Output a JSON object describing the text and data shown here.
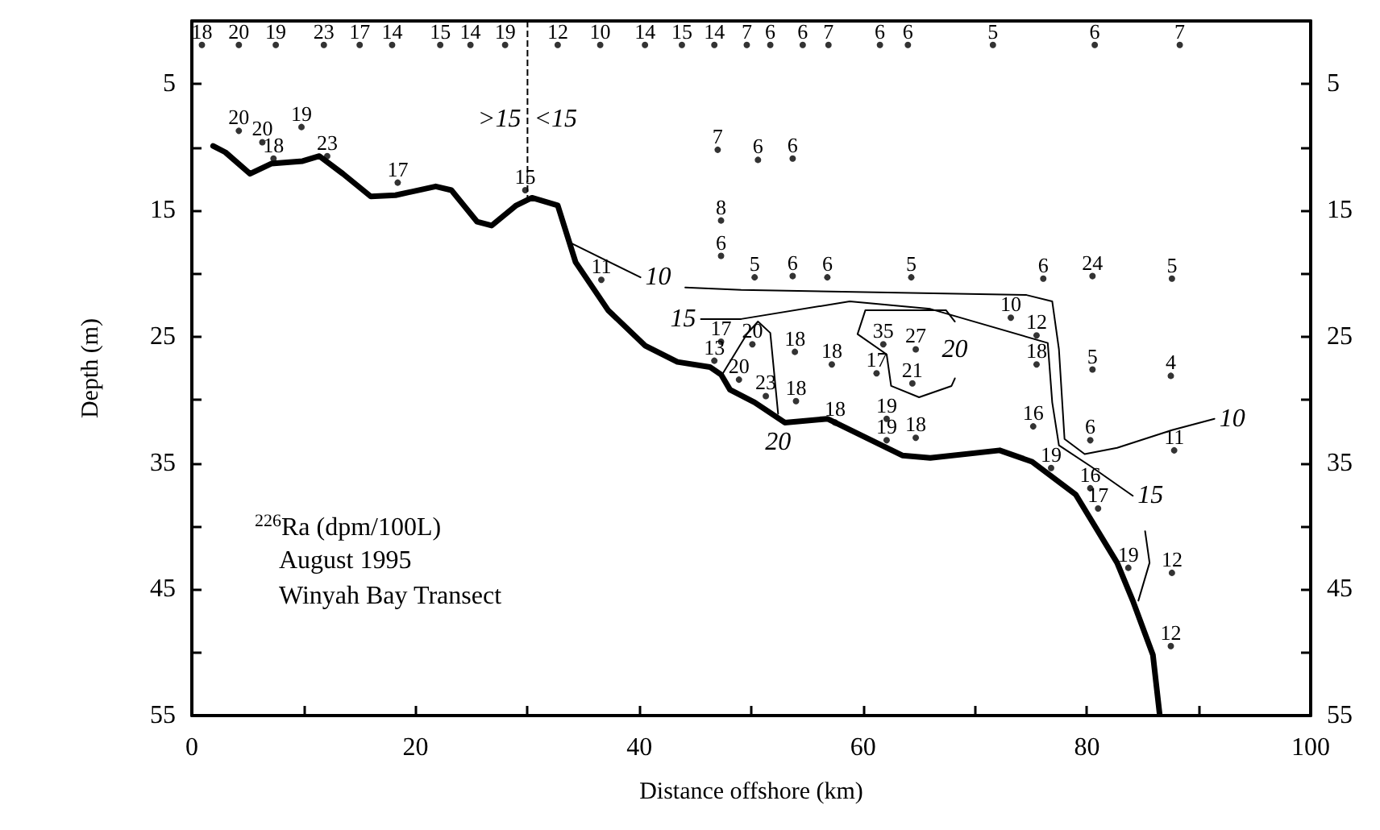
{
  "chart_data": {
    "type": "line",
    "xlabel": "Distance offshore (km)",
    "ylabel": "Depth (m)",
    "xlim": [
      0,
      100
    ],
    "xticks": [
      0,
      {
        "value": 10,
        "label": null
      },
      20,
      {
        "value": 30,
        "label": null
      },
      40,
      {
        "value": 50,
        "label": null
      },
      60,
      {
        "value": 70,
        "label": null
      },
      80,
      {
        "value": 90,
        "label": null
      },
      100
    ],
    "ylim": [
      55,
      0
    ],
    "yticks": [
      5,
      {
        "value": 10,
        "label": null
      },
      15,
      {
        "value": 20,
        "label": null
      },
      25,
      {
        "value": 30,
        "label": null
      },
      35,
      {
        "value": 40,
        "label": null
      },
      45,
      {
        "value": 50,
        "label": null
      },
      55
    ],
    "y2lim": [
      55,
      0
    ],
    "y2ticks": [
      5,
      {
        "value": 10,
        "label": null
      },
      15,
      {
        "value": 20,
        "label": null
      },
      25,
      {
        "value": 30,
        "label": null
      },
      35,
      {
        "value": 40,
        "label": null
      },
      45,
      {
        "value": 50,
        "label": null
      },
      55
    ],
    "grid": false,
    "marker": "none",
    "series": [
      {
        "color": "#000000",
        "x": [
          1.9,
          3.0,
          5.2,
          7.1,
          9.9,
          11.4,
          13.5,
          16.0,
          18.2,
          21.8,
          23.2,
          25.5,
          26.8,
          29.0,
          30.4,
          32.7,
          34.3,
          37.2,
          40.5,
          43.4,
          46.3,
          47.3,
          48.1,
          50.3,
          53.0,
          56.8,
          63.5,
          66.0,
          72.2,
          75.1,
          79.0,
          82.7,
          84.1,
          85.9,
          86.5
        ],
        "values": [
          9.9,
          10.4,
          12.1,
          11.3,
          11.1,
          10.7,
          12.1,
          13.9,
          13.8,
          13.1,
          13.4,
          15.9,
          16.2,
          14.6,
          14.0,
          14.6,
          19.1,
          22.9,
          25.7,
          27.0,
          27.4,
          28.0,
          29.2,
          30.2,
          31.8,
          31.5,
          34.4,
          34.6,
          34.0,
          34.9,
          37.5,
          42.9,
          45.9,
          50.2,
          54.9
        ]
      },
      {
        "color": "#000000",
        "x": [
          33.7,
          40.1
        ],
        "values": [
          17.5,
          20.3
        ]
      },
      {
        "color": "#000000",
        "x": [
          44.1,
          49.1,
          74.6,
          76.9,
          77.5,
          78.0,
          79.8,
          82.7,
          87.6,
          91.4
        ],
        "values": [
          21.1,
          21.3,
          21.7,
          22.2,
          26.0,
          33.1,
          34.3,
          33.8,
          32.4,
          31.5
        ]
      },
      {
        "color": "#000000",
        "x": [
          45.5,
          49.1,
          58.8,
          66.0,
          76.5,
          76.9,
          77.5,
          80.4,
          84.1
        ],
        "values": [
          23.6,
          23.6,
          22.2,
          22.8,
          25.5,
          30.2,
          33.6,
          35.3,
          37.6
        ]
      },
      {
        "color": "#000000",
        "x": [
          85.2,
          85.6,
          84.6
        ],
        "values": [
          40.4,
          42.9,
          45.9
        ]
      },
      {
        "color": "#000000",
        "x": [
          68.2,
          67.4,
          60.2,
          59.5,
          62.1,
          62.5,
          65.0,
          67.9,
          68.2
        ],
        "values": [
          23.8,
          22.9,
          22.9,
          24.8,
          26.4,
          28.9,
          29.8,
          28.9,
          28.3
        ]
      },
      {
        "color": "#000000",
        "x": [
          47.4,
          49.6,
          50.6,
          51.7,
          52.4
        ],
        "values": [
          28.0,
          24.8,
          23.8,
          24.7,
          31.1
        ]
      },
      {
        "type": "scatter",
        "color": "#000000",
        "marker": "circle",
        "x": [
          0.9,
          4.2,
          7.5,
          11.8,
          15.0,
          17.9,
          22.2,
          24.9,
          28.0,
          32.7,
          36.5,
          40.5,
          43.8,
          46.7,
          49.6,
          51.7,
          54.6,
          56.9,
          61.5,
          64.0,
          71.6,
          80.7,
          88.3,
          4.2,
          6.3,
          9.8,
          7.3,
          12.1,
          18.4,
          29.8,
          47.0,
          50.6,
          53.7,
          47.3,
          47.3,
          36.6,
          50.3,
          53.7,
          56.8,
          64.3,
          76.1,
          80.5,
          87.6,
          73.2,
          75.5,
          75.5,
          80.5,
          87.5,
          46.7,
          47.3,
          50.1,
          53.9,
          57.2,
          61.8,
          64.7,
          61.2,
          64.4,
          48.9,
          51.3,
          54.0,
          57.5,
          62.1,
          62.1,
          64.7,
          75.2,
          80.3,
          87.8,
          76.8,
          80.3,
          81.0,
          83.7,
          87.6,
          87.5
        ],
        "values": [
          1.9,
          1.9,
          1.9,
          1.9,
          1.9,
          1.9,
          1.9,
          1.9,
          1.9,
          1.9,
          1.9,
          1.9,
          1.9,
          1.9,
          1.9,
          1.9,
          1.9,
          1.9,
          1.9,
          1.9,
          1.9,
          1.9,
          1.9,
          8.7,
          9.6,
          8.4,
          10.9,
          10.7,
          12.8,
          13.4,
          10.2,
          11.0,
          10.9,
          15.8,
          18.6,
          20.5,
          20.3,
          20.2,
          20.3,
          20.3,
          20.4,
          20.2,
          20.4,
          23.5,
          24.9,
          27.2,
          27.6,
          28.1,
          26.9,
          25.4,
          25.6,
          26.2,
          27.2,
          25.6,
          26.0,
          27.9,
          28.7,
          28.4,
          29.7,
          30.1,
          31.8,
          31.5,
          33.2,
          33.0,
          32.1,
          33.2,
          34.0,
          35.4,
          37.0,
          38.6,
          43.3,
          43.7,
          49.5
        ]
      }
    ],
    "ref_lines": [
      {
        "axis": "x",
        "value": 30,
        "line_style": "dashed",
        "color": "#000000"
      }
    ],
    "annotations": [
      {
        "text": "18",
        "x": 0.9,
        "y": 1.9
      },
      {
        "text": "20",
        "x": 4.2,
        "y": 1.9
      },
      {
        "text": "19",
        "x": 7.5,
        "y": 1.9
      },
      {
        "text": "23",
        "x": 11.8,
        "y": 1.9
      },
      {
        "text": "17",
        "x": 15.0,
        "y": 1.9
      },
      {
        "text": "14",
        "x": 17.9,
        "y": 1.9
      },
      {
        "text": "15",
        "x": 22.2,
        "y": 1.9
      },
      {
        "text": "14",
        "x": 24.9,
        "y": 1.9
      },
      {
        "text": "19",
        "x": 28.0,
        "y": 1.9
      },
      {
        "text": "12",
        "x": 32.7,
        "y": 1.9
      },
      {
        "text": "10",
        "x": 36.5,
        "y": 1.9
      },
      {
        "text": "14",
        "x": 40.5,
        "y": 1.9
      },
      {
        "text": "15",
        "x": 43.8,
        "y": 1.9
      },
      {
        "text": "14",
        "x": 46.7,
        "y": 1.9
      },
      {
        "text": "7",
        "x": 49.6,
        "y": 1.9
      },
      {
        "text": "6",
        "x": 51.7,
        "y": 1.9
      },
      {
        "text": "6",
        "x": 54.6,
        "y": 1.9
      },
      {
        "text": "7",
        "x": 56.9,
        "y": 1.9
      },
      {
        "text": "6",
        "x": 61.5,
        "y": 1.9
      },
      {
        "text": "6",
        "x": 64.0,
        "y": 1.9
      },
      {
        "text": "5",
        "x": 71.6,
        "y": 1.9
      },
      {
        "text": "6",
        "x": 80.7,
        "y": 1.9
      },
      {
        "text": "7",
        "x": 88.3,
        "y": 1.9
      },
      {
        "text": "20",
        "x": 4.2,
        "y": 8.7
      },
      {
        "text": "20",
        "x": 6.3,
        "y": 9.6
      },
      {
        "text": "19",
        "x": 9.8,
        "y": 8.4
      },
      {
        "text": "18",
        "x": 7.3,
        "y": 10.9
      },
      {
        "text": "23",
        "x": 12.1,
        "y": 10.7
      },
      {
        "text": "17",
        "x": 18.4,
        "y": 12.8
      },
      {
        "text": "15",
        "x": 29.8,
        "y": 13.4
      },
      {
        "text": "7",
        "x": 47.0,
        "y": 10.2
      },
      {
        "text": "6",
        "x": 50.6,
        "y": 11.0
      },
      {
        "text": "6",
        "x": 53.7,
        "y": 10.9
      },
      {
        "text": "8",
        "x": 47.3,
        "y": 15.8
      },
      {
        "text": "6",
        "x": 47.3,
        "y": 18.6
      },
      {
        "text": "11",
        "x": 36.6,
        "y": 20.5
      },
      {
        "text": "5",
        "x": 50.3,
        "y": 20.3
      },
      {
        "text": "6",
        "x": 53.7,
        "y": 20.2
      },
      {
        "text": "6",
        "x": 56.8,
        "y": 20.3
      },
      {
        "text": "5",
        "x": 64.3,
        "y": 20.3
      },
      {
        "text": "6",
        "x": 76.1,
        "y": 20.4
      },
      {
        "text": "24",
        "x": 80.5,
        "y": 20.2
      },
      {
        "text": "5",
        "x": 87.6,
        "y": 20.4
      },
      {
        "text": "10",
        "x": 73.2,
        "y": 23.5
      },
      {
        "text": "12",
        "x": 75.5,
        "y": 24.9
      },
      {
        "text": "18",
        "x": 75.5,
        "y": 27.2
      },
      {
        "text": "5",
        "x": 80.5,
        "y": 27.6
      },
      {
        "text": "4",
        "x": 87.5,
        "y": 28.1
      },
      {
        "text": "13",
        "x": 46.7,
        "y": 26.9
      },
      {
        "text": "17",
        "x": 47.3,
        "y": 25.4
      },
      {
        "text": "20",
        "x": 50.1,
        "y": 25.6
      },
      {
        "text": "18",
        "x": 53.9,
        "y": 26.2
      },
      {
        "text": "18",
        "x": 57.2,
        "y": 27.2
      },
      {
        "text": "35",
        "x": 61.8,
        "y": 25.6
      },
      {
        "text": "27",
        "x": 64.7,
        "y": 26.0
      },
      {
        "text": "17",
        "x": 61.2,
        "y": 27.9
      },
      {
        "text": "21",
        "x": 64.4,
        "y": 28.7
      },
      {
        "text": "20",
        "x": 48.9,
        "y": 28.4
      },
      {
        "text": "23",
        "x": 51.3,
        "y": 29.7
      },
      {
        "text": "18",
        "x": 54.0,
        "y": 30.1
      },
      {
        "text": "18",
        "x": 57.5,
        "y": 31.8
      },
      {
        "text": "19",
        "x": 62.1,
        "y": 31.5
      },
      {
        "text": "19",
        "x": 62.1,
        "y": 33.2
      },
      {
        "text": "18",
        "x": 64.7,
        "y": 33.0
      },
      {
        "text": "16",
        "x": 75.2,
        "y": 32.1
      },
      {
        "text": "6",
        "x": 80.3,
        "y": 33.2
      },
      {
        "text": "11",
        "x": 87.8,
        "y": 34.0
      },
      {
        "text": "19",
        "x": 76.8,
        "y": 35.4
      },
      {
        "text": "16",
        "x": 80.3,
        "y": 37.0
      },
      {
        "text": "17",
        "x": 81.0,
        "y": 38.6
      },
      {
        "text": "19",
        "x": 83.7,
        "y": 43.3
      },
      {
        "text": "12",
        "x": 87.6,
        "y": 43.7
      },
      {
        "text": "12",
        "x": 87.5,
        "y": 49.5
      },
      {
        "text": "10",
        "x": 40.1,
        "y": 20.3
      },
      {
        "text": "15",
        "x": 45.5,
        "y": 23.6
      },
      {
        "text": "20",
        "x": 68.2,
        "y": 28.3
      },
      {
        "text": "20",
        "x": 52.4,
        "y": 31.1
      },
      {
        "text": "10",
        "x": 91.4,
        "y": 31.5
      },
      {
        "text": "15",
        "x": 84.1,
        "y": 37.6
      },
      {
        "text": ">15",
        "x": 30,
        "y": 7.8
      },
      {
        "text": "<15",
        "x": 30,
        "y": 7.8
      },
      "$^{226}$Ra (dpm/100L)",
      "August 1995",
      "Winyah Bay Transect"
    ]
  }
}
